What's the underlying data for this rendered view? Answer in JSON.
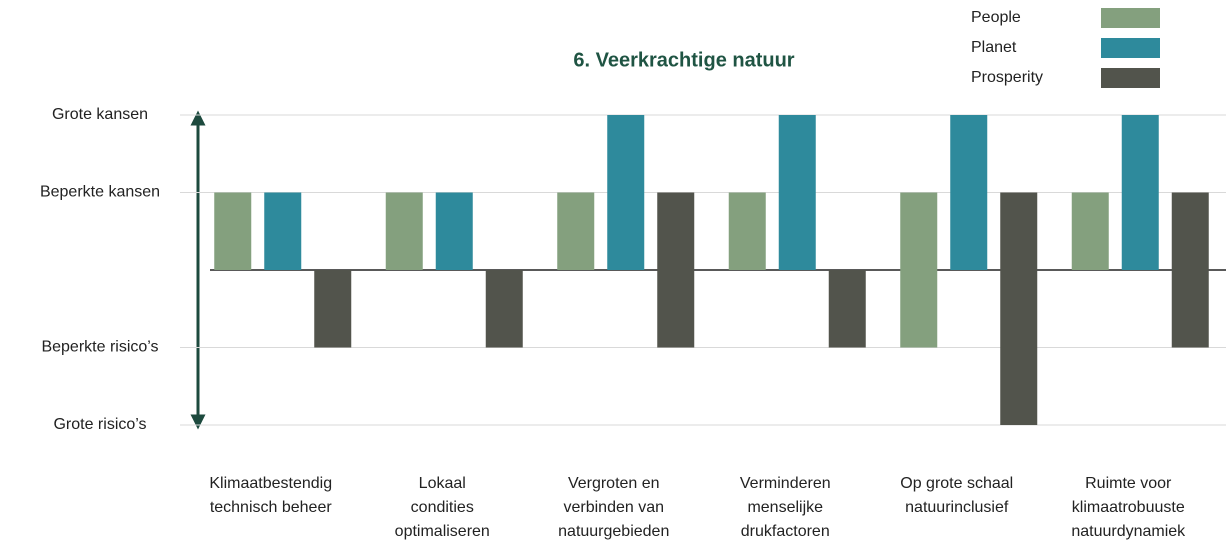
{
  "chart_data": {
    "type": "bar",
    "title": "6. Veerkrachtige natuur",
    "categories": [
      "Klimaatbestendig\ntechnisch beheer",
      "Lokaal\ncondities\noptimaliseren",
      "Vergroten en\nverbinden van\nnatuurgebieden",
      "Verminderen\nmenselijke\ndrukfactoren",
      "Op grote schaal\nnatuurinclusief",
      "Ruimte voor\nklimaatrobuuste\nnatuurdynamiek"
    ],
    "series": [
      {
        "name": "People",
        "color": "#84a07e",
        "values": [
          [
            0,
            1
          ],
          [
            0,
            1
          ],
          [
            0,
            1
          ],
          [
            0,
            1
          ],
          [
            -1,
            1
          ],
          [
            0,
            1
          ]
        ]
      },
      {
        "name": "Planet",
        "color": "#2e8a9c",
        "values": [
          [
            0,
            1
          ],
          [
            0,
            1
          ],
          [
            0,
            2
          ],
          [
            0,
            2
          ],
          [
            0,
            2
          ],
          [
            0,
            2
          ]
        ]
      },
      {
        "name": "Prosperity",
        "color": "#52544c",
        "values": [
          [
            -1,
            0
          ],
          [
            -1,
            0
          ],
          [
            -1,
            1
          ],
          [
            -1,
            0
          ],
          [
            -2,
            1
          ],
          [
            -1,
            1
          ]
        ]
      }
    ],
    "ylim": [
      -2,
      2
    ],
    "yticks": [
      {
        "value": 2,
        "label": "Grote kansen"
      },
      {
        "value": 1,
        "label": "Beperkte kansen"
      },
      {
        "value": -1,
        "label": "Beperkte risico’s"
      },
      {
        "value": -2,
        "label": "Grote risico’s"
      }
    ],
    "grid": true,
    "legend": "top-right"
  }
}
